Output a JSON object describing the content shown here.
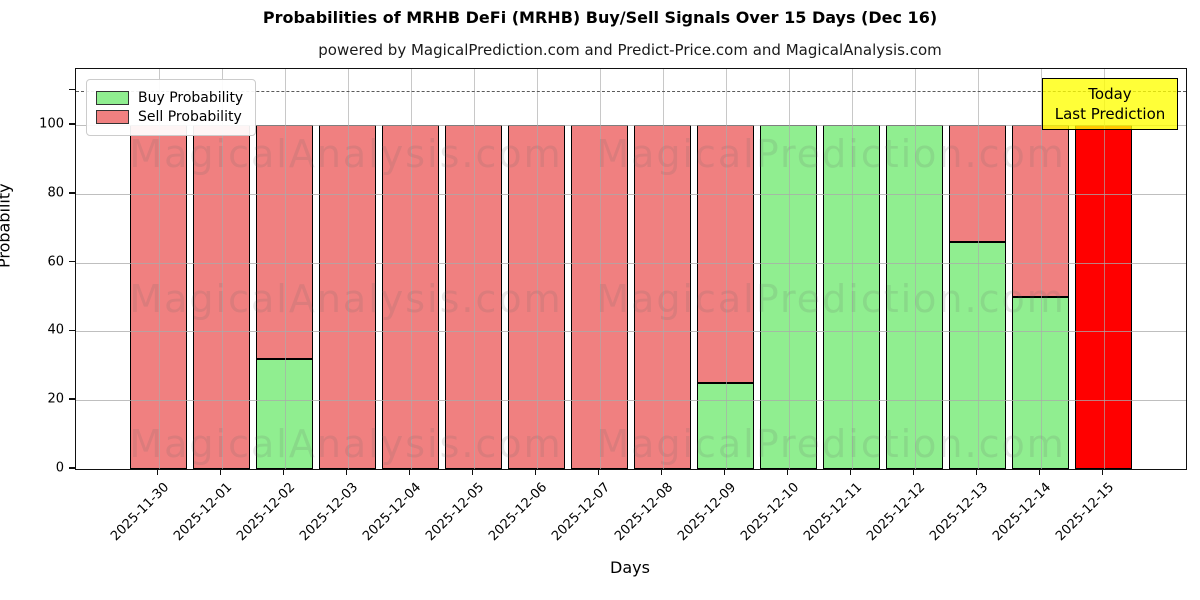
{
  "title": "Probabilities of MRHB DeFi (MRHB) Buy/Sell Signals Over 15 Days (Dec 16)",
  "subtitle": "powered by MagicalPrediction.com and Predict-Price.com and MagicalAnalysis.com",
  "legend": {
    "items": [
      {
        "label": "Buy Probability",
        "color": "#90ee90"
      },
      {
        "label": "Sell Probability",
        "color": "#f08080"
      }
    ]
  },
  "annotation": {
    "line1": "Today",
    "line2": "Last Prediction",
    "bg_color": "#ffff00"
  },
  "watermarks": {
    "left": "MagicalAnalysis.com",
    "right": "MagicalPrediction.com"
  },
  "axes": {
    "x_label": "Days",
    "y_label": "Probability",
    "y_ticks": [
      0,
      20,
      40,
      60,
      80,
      100
    ],
    "ylim": [
      0,
      116.3
    ],
    "dashed_line_y": 110,
    "grid_color": "#aaaaaa"
  },
  "chart_data": {
    "type": "bar",
    "stacked": true,
    "title": "Probabilities of MRHB DeFi (MRHB) Buy/Sell Signals Over 15 Days (Dec 16)",
    "xlabel": "Days",
    "ylabel": "Probability",
    "ylim": [
      0,
      116.3
    ],
    "grid": true,
    "legend_position": "upper left",
    "categories": [
      "2025-11-30",
      "2025-12-01",
      "2025-12-02",
      "2025-12-03",
      "2025-12-04",
      "2025-12-05",
      "2025-12-06",
      "2025-12-07",
      "2025-12-08",
      "2025-12-09",
      "2025-12-10",
      "2025-12-11",
      "2025-12-12",
      "2025-12-13",
      "2025-12-14",
      "2025-12-15"
    ],
    "series": [
      {
        "name": "Buy Probability",
        "color": "#90ee90",
        "values": [
          0,
          0,
          32,
          0,
          0,
          0,
          0,
          0,
          0,
          25,
          100,
          100,
          100,
          66,
          50,
          0
        ]
      },
      {
        "name": "Sell Probability",
        "color": "#f08080",
        "values": [
          100,
          100,
          68,
          100,
          100,
          100,
          100,
          100,
          100,
          75,
          0,
          0,
          0,
          34,
          50,
          100
        ]
      }
    ],
    "highlight_bar": {
      "index": 15,
      "color": "#ff0000",
      "label": "Today / Last Prediction"
    },
    "dashed_reference_line": 110
  }
}
